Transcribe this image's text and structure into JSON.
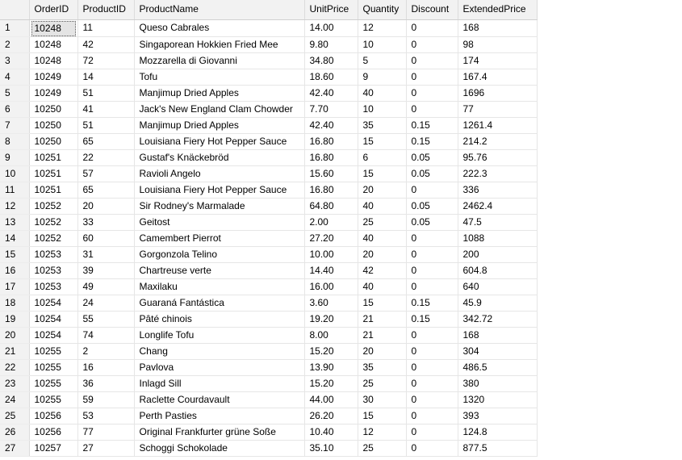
{
  "grid": {
    "columns": [
      "OrderID",
      "ProductID",
      "ProductName",
      "UnitPrice",
      "Quantity",
      "Discount",
      "ExtendedPrice"
    ],
    "selected_cell": {
      "row": 0,
      "col": 0
    },
    "rows": [
      [
        "1",
        "10248",
        "11",
        "Queso Cabrales",
        "14.00",
        "12",
        "0",
        "168"
      ],
      [
        "2",
        "10248",
        "42",
        "Singaporean Hokkien Fried Mee",
        "9.80",
        "10",
        "0",
        "98"
      ],
      [
        "3",
        "10248",
        "72",
        "Mozzarella di Giovanni",
        "34.80",
        "5",
        "0",
        "174"
      ],
      [
        "4",
        "10249",
        "14",
        "Tofu",
        "18.60",
        "9",
        "0",
        "167.4"
      ],
      [
        "5",
        "10249",
        "51",
        "Manjimup Dried Apples",
        "42.40",
        "40",
        "0",
        "1696"
      ],
      [
        "6",
        "10250",
        "41",
        "Jack's New England Clam Chowder",
        "7.70",
        "10",
        "0",
        "77"
      ],
      [
        "7",
        "10250",
        "51",
        "Manjimup Dried Apples",
        "42.40",
        "35",
        "0.15",
        "1261.4"
      ],
      [
        "8",
        "10250",
        "65",
        "Louisiana Fiery Hot Pepper Sauce",
        "16.80",
        "15",
        "0.15",
        "214.2"
      ],
      [
        "9",
        "10251",
        "22",
        "Gustaf's Knäckebröd",
        "16.80",
        "6",
        "0.05",
        "95.76"
      ],
      [
        "10",
        "10251",
        "57",
        "Ravioli Angelo",
        "15.60",
        "15",
        "0.05",
        "222.3"
      ],
      [
        "11",
        "10251",
        "65",
        "Louisiana Fiery Hot Pepper Sauce",
        "16.80",
        "20",
        "0",
        "336"
      ],
      [
        "12",
        "10252",
        "20",
        "Sir Rodney's Marmalade",
        "64.80",
        "40",
        "0.05",
        "2462.4"
      ],
      [
        "13",
        "10252",
        "33",
        "Geitost",
        "2.00",
        "25",
        "0.05",
        "47.5"
      ],
      [
        "14",
        "10252",
        "60",
        "Camembert Pierrot",
        "27.20",
        "40",
        "0",
        "1088"
      ],
      [
        "15",
        "10253",
        "31",
        "Gorgonzola Telino",
        "10.00",
        "20",
        "0",
        "200"
      ],
      [
        "16",
        "10253",
        "39",
        "Chartreuse verte",
        "14.40",
        "42",
        "0",
        "604.8"
      ],
      [
        "17",
        "10253",
        "49",
        "Maxilaku",
        "16.00",
        "40",
        "0",
        "640"
      ],
      [
        "18",
        "10254",
        "24",
        "Guaraná Fantástica",
        "3.60",
        "15",
        "0.15",
        "45.9"
      ],
      [
        "19",
        "10254",
        "55",
        "Pâté chinois",
        "19.20",
        "21",
        "0.15",
        "342.72"
      ],
      [
        "20",
        "10254",
        "74",
        "Longlife Tofu",
        "8.00",
        "21",
        "0",
        "168"
      ],
      [
        "21",
        "10255",
        "2",
        "Chang",
        "15.20",
        "20",
        "0",
        "304"
      ],
      [
        "22",
        "10255",
        "16",
        "Pavlova",
        "13.90",
        "35",
        "0",
        "486.5"
      ],
      [
        "23",
        "10255",
        "36",
        "Inlagd Sill",
        "15.20",
        "25",
        "0",
        "380"
      ],
      [
        "24",
        "10255",
        "59",
        "Raclette Courdavault",
        "44.00",
        "30",
        "0",
        "1320"
      ],
      [
        "25",
        "10256",
        "53",
        "Perth Pasties",
        "26.20",
        "15",
        "0",
        "393"
      ],
      [
        "26",
        "10256",
        "77",
        "Original Frankfurter grüne Soße",
        "10.40",
        "12",
        "0",
        "124.8"
      ],
      [
        "27",
        "10257",
        "27",
        "Schoggi Schokolade",
        "35.10",
        "25",
        "0",
        "877.5"
      ]
    ]
  }
}
